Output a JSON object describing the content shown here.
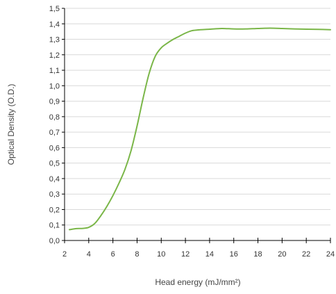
{
  "chart_data": {
    "type": "line",
    "title": "",
    "xlabel": "Head energy (mJ/mm²)",
    "ylabel": "Optical Density (O.D.)",
    "xlim": [
      2,
      24
    ],
    "ylim": [
      0,
      1.5
    ],
    "x_ticks": [
      "2",
      "4",
      "6",
      "8",
      "10",
      "12",
      "14",
      "16",
      "18",
      "20",
      "22",
      "24"
    ],
    "y_ticks": [
      "0,0",
      "0,1",
      "0,2",
      "0,3",
      "0,4",
      "0,5",
      "0,6",
      "0,7",
      "0,8",
      "0,9",
      "1,0",
      "1,1",
      "1,2",
      "1,3",
      "1,4",
      "1,5"
    ],
    "grid": "horizontal",
    "legend": "none",
    "series_color": "#7ab648",
    "series": [
      {
        "x": [
          2.4,
          3.0,
          3.5,
          4.0,
          4.5,
          5.0,
          5.5,
          6.0,
          6.5,
          7.0,
          7.5,
          8.0,
          8.5,
          9.0,
          9.5,
          10.0,
          10.5,
          11.0,
          11.5,
          12.0,
          12.5,
          13.0,
          14.0,
          15.0,
          16.0,
          17.0,
          18.0,
          19.0,
          20.0,
          21.0,
          22.0,
          23.0,
          24.0
        ],
        "y": [
          0.07,
          0.077,
          0.078,
          0.085,
          0.11,
          0.16,
          0.22,
          0.29,
          0.37,
          0.46,
          0.58,
          0.74,
          0.92,
          1.08,
          1.19,
          1.245,
          1.275,
          1.3,
          1.32,
          1.34,
          1.355,
          1.36,
          1.365,
          1.37,
          1.367,
          1.367,
          1.37,
          1.372,
          1.37,
          1.367,
          1.365,
          1.364,
          1.362
        ]
      }
    ]
  }
}
